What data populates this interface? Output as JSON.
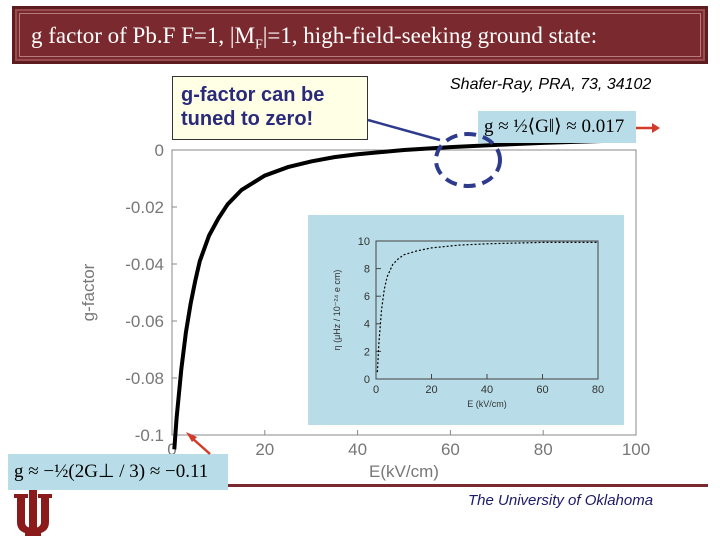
{
  "slide": {
    "title_prefix": "g factor of Pb.F F=1, |M",
    "title_sub": "F",
    "title_suffix": "|=1, high-field-seeking ground state:",
    "callout_line1": "g-factor can be",
    "callout_line2": "tuned to zero!",
    "citation": "Shafer-Ray, PRA, 73, 34102",
    "eq_top": "g ≈ ½⟨G‖⟩ ≈ 0.017",
    "eq_bottom": "g ≈ −½(2G⊥ / 3) ≈ −0.11",
    "university": "The University of Oklahoma",
    "colors": {
      "title_bg": "#7a2a2e",
      "equation_bg": "#b9dde8",
      "annotation": "#d23a2a",
      "dashed_circle": "#2e3a8c"
    }
  },
  "chart_data": [
    {
      "type": "line",
      "xlabel": "E(kV/cm)",
      "ylabel": "g-factor",
      "xlim": [
        0,
        100
      ],
      "ylim": [
        -0.1,
        0.0
      ],
      "x_ticks": [
        "0",
        "20",
        "40",
        "60",
        "80",
        "100"
      ],
      "y_ticks": [
        "0",
        "-0.02",
        "-0.04",
        "-0.06",
        "-0.08",
        "-0.1"
      ],
      "grid": false,
      "series": [
        {
          "x": [
            0.5,
            1,
            2,
            3,
            4,
            5,
            6,
            8,
            10,
            12,
            15,
            20,
            25,
            30,
            35,
            40,
            50,
            60,
            70,
            80,
            90,
            100
          ],
          "y": [
            -0.105,
            -0.094,
            -0.077,
            -0.064,
            -0.054,
            -0.046,
            -0.039,
            -0.03,
            -0.024,
            -0.019,
            -0.014,
            -0.009,
            -0.006,
            -0.004,
            -0.0025,
            -0.0015,
            0.0,
            0.001,
            0.0018,
            0.0025,
            0.003,
            0.0035
          ]
        }
      ]
    },
    {
      "type": "line",
      "xlabel": "E (kV/cm)",
      "ylabel": "η (μHz / 10⁻²⁴ e cm)",
      "xlim": [
        0,
        80
      ],
      "ylim": [
        0,
        10
      ],
      "x_ticks": [
        "0",
        "20",
        "40",
        "60",
        "80"
      ],
      "y_ticks": [
        "0",
        "2",
        "4",
        "6",
        "8",
        "10"
      ],
      "series": [
        {
          "x": [
            0.5,
            1,
            2,
            3,
            4,
            6,
            8,
            10,
            15,
            20,
            30,
            40,
            60,
            80
          ],
          "y": [
            0.5,
            2.5,
            5.0,
            6.5,
            7.4,
            8.3,
            8.7,
            9.0,
            9.3,
            9.5,
            9.7,
            9.8,
            9.9,
            9.9
          ]
        }
      ]
    }
  ]
}
